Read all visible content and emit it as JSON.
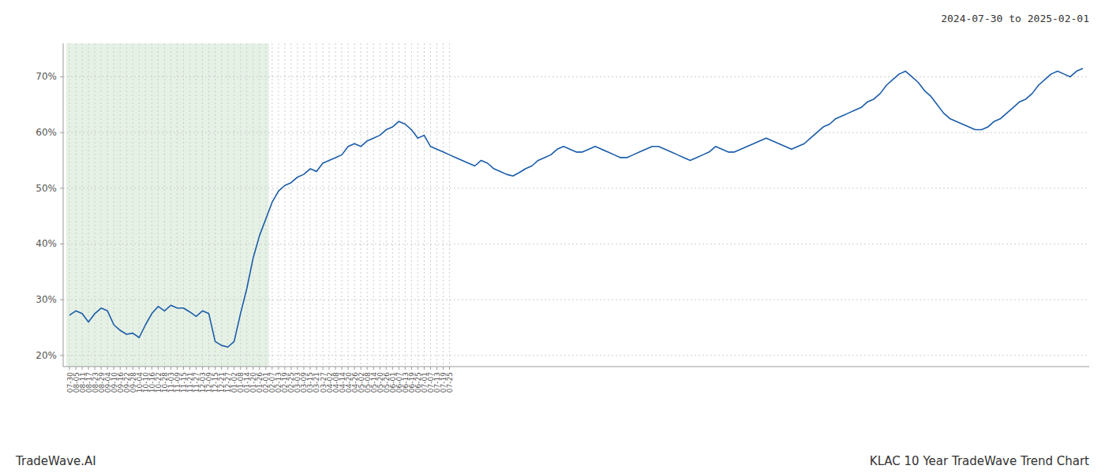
{
  "chart_data": {
    "type": "line",
    "title": "2024-07-30 to 2025-02-01",
    "annotations": [
      "TradeWave.AI",
      "KLAC 10 Year TradeWave Trend Chart"
    ],
    "color": "#1a5ca8",
    "grid": true,
    "ylim": [
      18,
      76
    ],
    "yticks": [
      {
        "value": 20,
        "label": "20%"
      },
      {
        "value": 30,
        "label": "30%"
      },
      {
        "value": 40,
        "label": "40%"
      },
      {
        "value": 50,
        "label": "50%"
      },
      {
        "value": 60,
        "label": "60%"
      },
      {
        "value": 70,
        "label": "70%"
      }
    ],
    "shade": {
      "end": "02-01",
      "color": "#d4e8d4"
    },
    "categories": [
      "07-30",
      "08-05",
      "08-11",
      "08-17",
      "08-23",
      "08-29",
      "09-04",
      "09-10",
      "09-16",
      "09-22",
      "09-28",
      "10-04",
      "10-10",
      "10-16",
      "10-22",
      "10-28",
      "11-03",
      "11-09",
      "11-15",
      "11-21",
      "11-27",
      "12-03",
      "12-09",
      "12-15",
      "12-21",
      "12-27",
      "01-02",
      "01-08",
      "01-14",
      "01-20",
      "01-26",
      "02-01",
      "02-07",
      "02-13",
      "02-19",
      "02-25",
      "03-03",
      "03-09",
      "03-15",
      "03-21",
      "03-27",
      "04-02",
      "04-08",
      "04-14",
      "04-20",
      "04-26",
      "05-02",
      "05-08",
      "05-14",
      "05-20",
      "05-26",
      "06-01",
      "06-07",
      "06-13",
      "06-19",
      "06-25",
      "07-01",
      "07-07",
      "07-13",
      "07-19",
      "07-25",
      null,
      null,
      null,
      null,
      null,
      null,
      null,
      null,
      null,
      null,
      null,
      null,
      null,
      null,
      null,
      null,
      null,
      null,
      null,
      null,
      null,
      null,
      null,
      null,
      null,
      null,
      null,
      null,
      null,
      null,
      null,
      null,
      null,
      null,
      null,
      null,
      null,
      null,
      null,
      null,
      null,
      null,
      null,
      null,
      null,
      null,
      null,
      null,
      null,
      null,
      null,
      null,
      null,
      null,
      null,
      null,
      null,
      null,
      null,
      null,
      null,
      null,
      null,
      null,
      null,
      null,
      null,
      null,
      null,
      null,
      null,
      null,
      null,
      null,
      null,
      null,
      null,
      null,
      null,
      null,
      null,
      null,
      null,
      null,
      null,
      null,
      null,
      null,
      null,
      null,
      null,
      null,
      null,
      null,
      null,
      null,
      null,
      null,
      null,
      null
    ],
    "values": [
      27.2,
      28.0,
      27.5,
      26.0,
      27.5,
      28.5,
      28.0,
      25.5,
      24.5,
      23.8,
      24.0,
      23.2,
      25.5,
      27.5,
      28.8,
      28.0,
      29.0,
      28.5,
      28.5,
      27.8,
      27.0,
      28.0,
      27.5,
      22.5,
      21.8,
      21.5,
      22.5,
      27.5,
      32.0,
      37.5,
      41.5,
      44.5,
      47.5,
      49.5,
      50.5,
      51.0,
      52.0,
      52.5,
      53.5,
      53.0,
      54.5,
      55.0,
      55.5,
      56.0,
      57.5,
      58.0,
      57.5,
      58.5,
      59.0,
      59.5,
      60.5,
      61.0,
      62.0,
      61.5,
      60.5,
      59.0,
      59.5,
      57.5,
      57.0,
      56.5,
      56.0,
      55.5,
      55.0,
      54.5,
      54.0,
      55.0,
      54.5,
      53.5,
      53.0,
      52.5,
      52.2,
      52.8,
      53.5,
      54.0,
      55.0,
      55.5,
      56.0,
      57.0,
      57.5,
      57.0,
      56.5,
      56.5,
      57.0,
      57.5,
      57.0,
      56.5,
      56.0,
      55.5,
      55.5,
      56.0,
      56.5,
      57.0,
      57.5,
      57.5,
      57.0,
      56.5,
      56.0,
      55.5,
      55.0,
      55.5,
      56.0,
      56.5,
      57.5,
      57.0,
      56.5,
      56.5,
      57.0,
      57.5,
      58.0,
      58.5,
      59.0,
      58.5,
      58.0,
      57.5,
      57.0,
      57.5,
      58.0,
      59.0,
      60.0,
      61.0,
      61.5,
      62.5,
      63.0,
      63.5,
      64.0,
      64.5,
      65.5,
      66.0,
      67.0,
      68.5,
      69.5,
      70.5,
      71.0,
      70.0,
      69.0,
      67.5,
      66.5,
      65.0,
      63.5,
      62.5,
      62.0,
      61.5,
      61.0,
      60.5,
      60.5,
      61.0,
      62.0,
      62.5,
      63.5,
      64.5,
      65.5,
      66.0,
      67.0,
      68.5,
      69.5,
      70.5,
      71.0,
      70.5,
      70.0,
      71.0,
      71.5
    ]
  }
}
